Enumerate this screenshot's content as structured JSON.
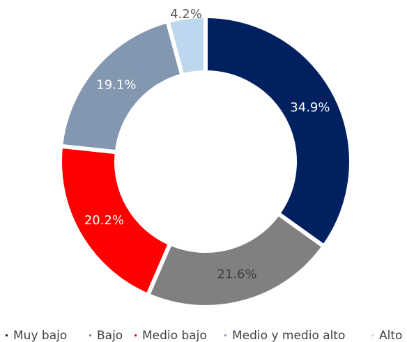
{
  "chart_data": {
    "type": "donut",
    "categories": [
      "Muy bajo",
      "Bajo",
      "Medio bajo",
      "Medio y medio alto",
      "Alto"
    ],
    "values": [
      34.9,
      21.6,
      20.2,
      19.1,
      4.2
    ],
    "value_labels": [
      "34.9%",
      "21.6%",
      "20.2%",
      "19.1%",
      "4.2%"
    ],
    "colors": [
      "#002060",
      "#808080",
      "#ff0000",
      "#8497b0",
      "#bdd7ee"
    ],
    "legend": "bottom"
  }
}
